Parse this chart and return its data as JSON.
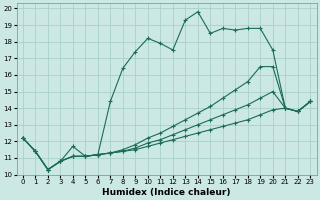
{
  "xlabel": "Humidex (Indice chaleur)",
  "bg_color": "#cce8e4",
  "grid_color": "#aacfca",
  "line_color": "#1a6b5a",
  "xlim": [
    -0.5,
    23.5
  ],
  "ylim": [
    10,
    20.3
  ],
  "xticks": [
    0,
    1,
    2,
    3,
    4,
    5,
    6,
    7,
    8,
    9,
    10,
    11,
    12,
    13,
    14,
    15,
    16,
    17,
    18,
    19,
    20,
    21,
    22,
    23
  ],
  "yticks": [
    10,
    11,
    12,
    13,
    14,
    15,
    16,
    17,
    18,
    19,
    20
  ],
  "series1_x": [
    0,
    1,
    2,
    3,
    4,
    5,
    6,
    7,
    8,
    9,
    10,
    11,
    12,
    13,
    14,
    15,
    16,
    17,
    18,
    19,
    20,
    21,
    22,
    23
  ],
  "series1_y": [
    12.2,
    11.4,
    10.3,
    10.8,
    11.7,
    11.1,
    11.2,
    14.4,
    16.4,
    17.4,
    18.2,
    17.9,
    17.5,
    19.3,
    19.8,
    18.5,
    18.8,
    18.7,
    18.8,
    18.8,
    17.5,
    14.0,
    13.8,
    14.4
  ],
  "series2_x": [
    0,
    1,
    2,
    3,
    4,
    5,
    6,
    7,
    8,
    9,
    10,
    11,
    12,
    13,
    14,
    15,
    16,
    17,
    18,
    19,
    20,
    21,
    22,
    23
  ],
  "series2_y": [
    12.2,
    11.4,
    10.3,
    10.8,
    11.1,
    11.1,
    11.2,
    11.3,
    11.5,
    11.8,
    12.2,
    12.5,
    12.9,
    13.3,
    13.7,
    14.1,
    14.6,
    15.1,
    15.6,
    16.5,
    16.5,
    14.0,
    13.8,
    14.4
  ],
  "series3_x": [
    0,
    1,
    2,
    3,
    4,
    5,
    6,
    7,
    8,
    9,
    10,
    11,
    12,
    13,
    14,
    15,
    16,
    17,
    18,
    19,
    20,
    21,
    22,
    23
  ],
  "series3_y": [
    12.2,
    11.4,
    10.3,
    10.8,
    11.1,
    11.1,
    11.2,
    11.3,
    11.4,
    11.6,
    11.9,
    12.1,
    12.4,
    12.7,
    13.0,
    13.3,
    13.6,
    13.9,
    14.2,
    14.6,
    15.0,
    14.0,
    13.8,
    14.4
  ],
  "series4_x": [
    0,
    1,
    2,
    3,
    4,
    5,
    6,
    7,
    8,
    9,
    10,
    11,
    12,
    13,
    14,
    15,
    16,
    17,
    18,
    19,
    20,
    21,
    22,
    23
  ],
  "series4_y": [
    12.2,
    11.4,
    10.3,
    10.8,
    11.1,
    11.1,
    11.2,
    11.3,
    11.4,
    11.5,
    11.7,
    11.9,
    12.1,
    12.3,
    12.5,
    12.7,
    12.9,
    13.1,
    13.3,
    13.6,
    13.9,
    14.0,
    13.8,
    14.4
  ]
}
